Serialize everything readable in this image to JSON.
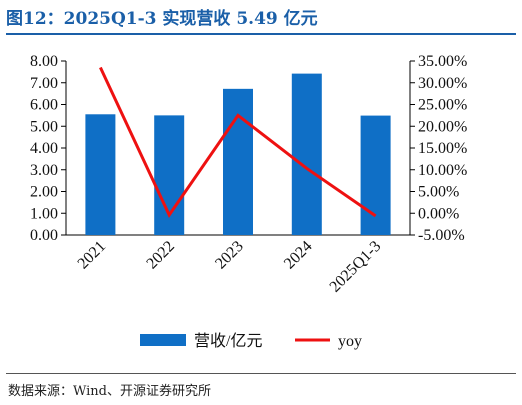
{
  "title": "图12：2025Q1-3 实现营收 5.49 亿元",
  "source": "数据来源：Wind、开源证券研究所",
  "chart_data": {
    "type": "bar",
    "categories": [
      "2021",
      "2022",
      "2023",
      "2024",
      "2025Q1-3"
    ],
    "series": [
      {
        "name": "营收/亿元",
        "type": "bar",
        "axis": "left",
        "color": "#0f6fc6",
        "values": [
          5.55,
          5.5,
          6.72,
          7.42,
          5.49
        ]
      },
      {
        "name": "yoy",
        "type": "line",
        "axis": "right",
        "color": "#ee1111",
        "values": [
          33.5,
          -0.4,
          22.5,
          10.3,
          -0.6
        ]
      }
    ],
    "y_left": {
      "min": 0,
      "max": 8,
      "step": 1,
      "tick_labels": [
        "0.00",
        "1.00",
        "2.00",
        "3.00",
        "4.00",
        "5.00",
        "6.00",
        "7.00",
        "8.00"
      ]
    },
    "y_right": {
      "min": -5,
      "max": 35,
      "step": 5,
      "tick_labels": [
        "-5.00%",
        "0.00%",
        "5.00%",
        "10.00%",
        "15.00%",
        "20.00%",
        "25.00%",
        "30.00%",
        "35.00%"
      ]
    },
    "grid": false,
    "legend_position": "bottom"
  }
}
